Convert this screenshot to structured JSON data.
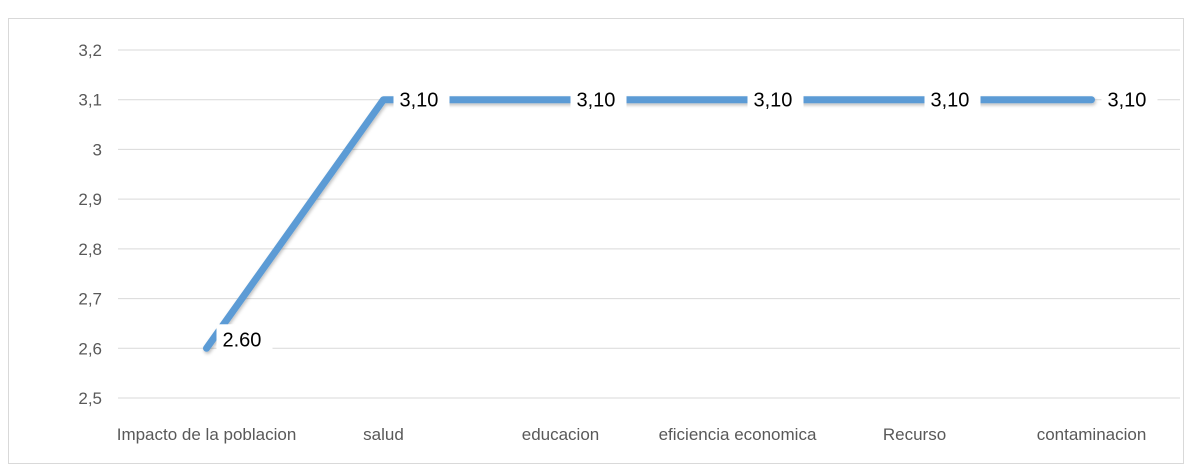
{
  "chart_data": {
    "type": "line",
    "categories": [
      "Impacto de la poblacion",
      "salud",
      "educacion",
      "eficiencia economica",
      "Recurso",
      "contaminacion"
    ],
    "values": [
      2.6,
      3.1,
      3.1,
      3.1,
      3.1,
      3.1
    ],
    "data_labels": [
      "2.60",
      "3,10",
      "3,10",
      "3,10",
      "3,10",
      "3,10"
    ],
    "y_ticks": [
      "2,5",
      "2,6",
      "2,7",
      "2,8",
      "2,9",
      "3",
      "3,1",
      "3,2"
    ],
    "ylim": [
      2.5,
      3.2
    ],
    "title": "",
    "xlabel": "",
    "ylabel": "",
    "grid": true,
    "legend": "none",
    "line_color": "#5b9bd5",
    "grid_color": "#d9d9d9"
  }
}
